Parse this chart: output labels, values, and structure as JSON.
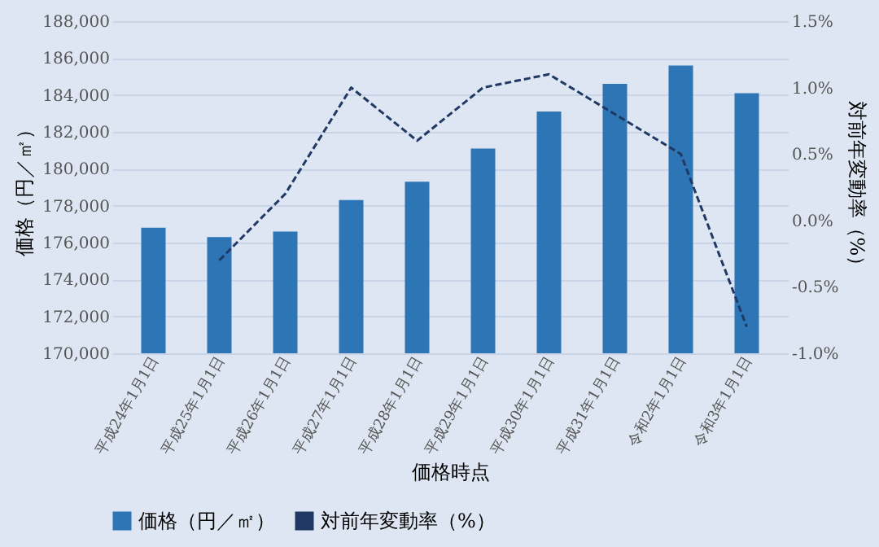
{
  "chart_data": {
    "type": "bar",
    "xlabel": "価格時点",
    "ylabel": "価格（円／㎡）",
    "y2label": "対前年変動率（%）",
    "categories": [
      "平成24年1月1日",
      "平成25年1月1日",
      "平成26年1月1日",
      "平成27年1月1日",
      "平成28年1月1日",
      "平成29年1月1日",
      "平成30年1月1日",
      "平成31年1月1日",
      "令和2年1月1日",
      "令和3年1月1日"
    ],
    "series": [
      {
        "name": "価格（円／㎡）",
        "color": "#2e75b6",
        "values": [
          176800,
          176300,
          176600,
          178300,
          179300,
          181100,
          183100,
          184600,
          185600,
          184100
        ]
      },
      {
        "name": "対前年変動率（%）",
        "type": "line",
        "axis": "y2",
        "color": "#1f3864",
        "line_style": "dashed",
        "values": [
          null,
          -0.3,
          0.2,
          1.0,
          0.6,
          1.0,
          1.1,
          0.8,
          0.5,
          -0.8
        ]
      }
    ],
    "ylim": [
      170000,
      188000
    ],
    "yticks": [
      {
        "value": 170000,
        "label": "170,000"
      },
      {
        "value": 172000,
        "label": "172,000"
      },
      {
        "value": 174000,
        "label": "174,000"
      },
      {
        "value": 176000,
        "label": "176,000"
      },
      {
        "value": 178000,
        "label": "178,000"
      },
      {
        "value": 180000,
        "label": "180,000"
      },
      {
        "value": 182000,
        "label": "182,000"
      },
      {
        "value": 184000,
        "label": "184,000"
      },
      {
        "value": 186000,
        "label": "186,000"
      },
      {
        "value": 188000,
        "label": "188,000"
      }
    ],
    "y2lim": [
      -1.0,
      1.5
    ],
    "y2ticks": [
      {
        "value": -1.0,
        "label": "-1.0%"
      },
      {
        "value": -0.5,
        "label": "-0.5%"
      },
      {
        "value": 0,
        "label": "0.0%"
      },
      {
        "value": 0.5,
        "label": "0.5%"
      },
      {
        "value": 1.0,
        "label": "1.0%"
      },
      {
        "value": 1.5,
        "label": "1.5%"
      }
    ],
    "grid": "y",
    "legend": "bottom",
    "marker": "none"
  }
}
